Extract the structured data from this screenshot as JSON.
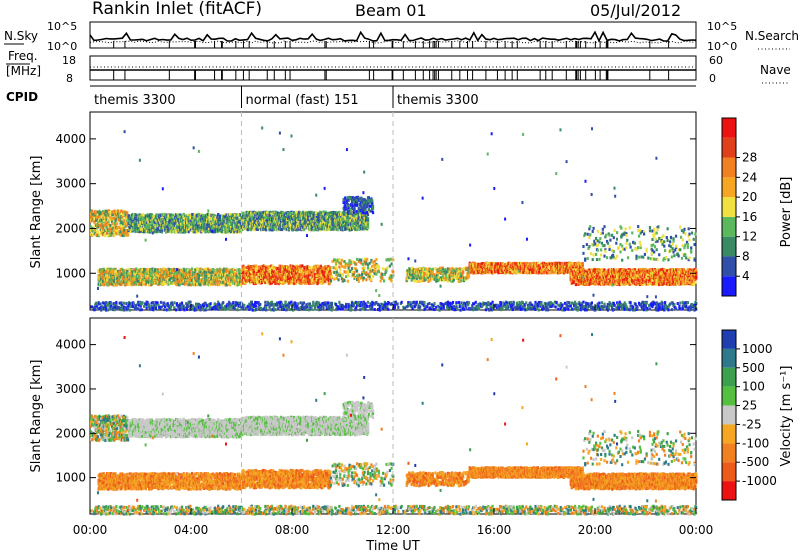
{
  "header": {
    "title": "Rankin Inlet (fitACF)",
    "beam": "Beam 01",
    "date": "05/Jul/2012"
  },
  "top_panel": {
    "left_label": "N.Sky",
    "right_label": "N.Search",
    "left_ticks": [
      "10^5",
      "10^0"
    ],
    "right_ticks": [
      "10^5",
      "10^0"
    ]
  },
  "freq_panel": {
    "left_label_1": "Freq.",
    "left_label_2": "[MHz]",
    "right_label": "Nave",
    "left_ticks": [
      "18",
      "8"
    ],
    "right_ticks": [
      "60",
      "0"
    ]
  },
  "cpid": {
    "label": "CPID",
    "segments": [
      {
        "name": "themis 3300",
        "start_hour": 0,
        "end_hour": 6
      },
      {
        "name": "normal (fast) 151",
        "start_hour": 6,
        "end_hour": 12
      },
      {
        "name": "themis 3300",
        "start_hour": 12,
        "end_hour": 24
      }
    ]
  },
  "chart_data": [
    {
      "type": "heatmap",
      "name": "power",
      "ylabel": "Slant Range [km]",
      "xlabel": "",
      "xlim": [
        0,
        24
      ],
      "ylim": [
        180,
        4600
      ],
      "yticks": [
        "1000",
        "2000",
        "3000",
        "4000"
      ],
      "colorbar_label": "Power [dB]",
      "colorbar_ticks": [
        "4",
        "8",
        "12",
        "16",
        "20",
        "24",
        "28"
      ],
      "colors": [
        "#1a1aff",
        "#2f4fa8",
        "#3a8a66",
        "#5cb85c",
        "#f0e040",
        "#f5a623",
        "#f08020",
        "#e0401a",
        "#ee1111"
      ]
    },
    {
      "type": "heatmap",
      "name": "velocity",
      "ylabel": "Slant Range [km]",
      "xlabel": "Time UT",
      "xlim": [
        0,
        24
      ],
      "ylim": [
        180,
        4600
      ],
      "yticks": [
        "1000",
        "2000",
        "3000",
        "4000"
      ],
      "xticks": [
        "00:00",
        "04:00",
        "08:00",
        "12:00",
        "16:00",
        "20:00",
        "00:00"
      ],
      "colorbar_label": "Velocity [m s⁻¹]",
      "colorbar_ticks": [
        "1000",
        "500",
        "100",
        "25",
        "-25",
        "-100",
        "-500",
        "-1000"
      ],
      "colors": [
        "#1f3fb0",
        "#2e7a8a",
        "#3da04d",
        "#55c040",
        "#c8c8c8",
        "#f5a623",
        "#f08020",
        "#ee5a1a",
        "#ee1111"
      ]
    }
  ],
  "scatter_bands": [
    {
      "from": 0,
      "to": 1.5,
      "center": 2150,
      "spread": 280,
      "density": 0.75,
      "pclass": "mid",
      "vclass": "mix"
    },
    {
      "from": 1.5,
      "to": 6,
      "center": 2150,
      "spread": 200,
      "density": 0.85,
      "pclass": "lowmid",
      "vclass": "grey"
    },
    {
      "from": 6,
      "to": 11,
      "center": 2200,
      "spread": 200,
      "density": 0.9,
      "pclass": "lowmid",
      "vclass": "grey"
    },
    {
      "from": 10,
      "to": 11.2,
      "center": 2550,
      "spread": 180,
      "density": 0.6,
      "pclass": "low",
      "vclass": "grey"
    },
    {
      "from": 0.3,
      "to": 6,
      "center": 950,
      "spread": 180,
      "density": 0.75,
      "pclass": "mid",
      "vclass": "orange"
    },
    {
      "from": 6,
      "to": 9.5,
      "center": 1000,
      "spread": 200,
      "density": 0.8,
      "pclass": "high",
      "vclass": "orange"
    },
    {
      "from": 9.5,
      "to": 12,
      "center": 1100,
      "spread": 250,
      "density": 0.45,
      "pclass": "mid",
      "vclass": "mix"
    },
    {
      "from": 12.5,
      "to": 15,
      "center": 1000,
      "spread": 150,
      "density": 0.6,
      "pclass": "mid",
      "vclass": "orange"
    },
    {
      "from": 15,
      "to": 19.5,
      "center": 1150,
      "spread": 110,
      "density": 0.85,
      "pclass": "high",
      "vclass": "orange"
    },
    {
      "from": 19,
      "to": 24,
      "center": 950,
      "spread": 170,
      "density": 0.85,
      "pclass": "high",
      "vclass": "orange"
    },
    {
      "from": 19.5,
      "to": 24,
      "center": 1700,
      "spread": 380,
      "density": 0.35,
      "pclass": "lowmid",
      "vclass": "mix"
    },
    {
      "from": 0,
      "to": 24,
      "center": 300,
      "spread": 90,
      "density": 0.35,
      "pclass": "low",
      "vclass": "mix"
    }
  ]
}
